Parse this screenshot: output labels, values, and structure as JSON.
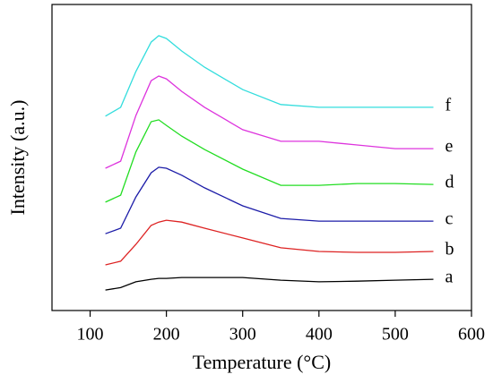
{
  "chart_data": {
    "type": "line",
    "x_label": "Temperature (°C)",
    "y_label": "Intensity (a.u.)",
    "x": [
      120,
      140,
      160,
      180,
      190,
      200,
      220,
      250,
      300,
      350,
      400,
      450,
      500,
      550
    ],
    "series": [
      {
        "name": "a",
        "color": "#000000",
        "values": [
          6.7,
          7.5,
          9.4,
          10.2,
          10.5,
          10.5,
          10.8,
          10.8,
          10.8,
          9.9,
          9.4,
          9.6,
          9.9,
          10.2
        ]
      },
      {
        "name": "b",
        "color": "#dd2222",
        "values": [
          14.9,
          16.1,
          21.6,
          27.8,
          28.9,
          29.5,
          28.9,
          26.9,
          23.7,
          20.5,
          19.3,
          19.0,
          19.0,
          19.3
        ]
      },
      {
        "name": "c",
        "color": "#1c1ca8",
        "values": [
          25.1,
          26.9,
          37.1,
          45.0,
          46.8,
          46.5,
          44.2,
          40.1,
          34.2,
          30.1,
          29.2,
          29.2,
          29.2,
          29.2
        ]
      },
      {
        "name": "d",
        "color": "#22dd22",
        "values": [
          35.4,
          37.7,
          51.8,
          61.7,
          62.3,
          60.5,
          57.0,
          52.6,
          46.2,
          40.9,
          40.9,
          41.5,
          41.5,
          41.2
        ]
      },
      {
        "name": "e",
        "color": "#dd33dd",
        "values": [
          46.5,
          48.8,
          63.7,
          75.1,
          76.6,
          75.7,
          71.6,
          66.4,
          59.1,
          55.3,
          55.3,
          54.1,
          52.9,
          52.9
        ]
      },
      {
        "name": "f",
        "color": "#33dddd",
        "values": [
          63.5,
          66.4,
          78.1,
          87.7,
          89.8,
          88.9,
          84.8,
          79.5,
          72.2,
          67.3,
          66.4,
          66.4,
          66.4,
          66.4
        ]
      }
    ],
    "xlim": [
      50,
      600
    ],
    "xticks": [
      100,
      200,
      300,
      400,
      500,
      600
    ],
    "ylim": [
      0,
      100
    ]
  }
}
